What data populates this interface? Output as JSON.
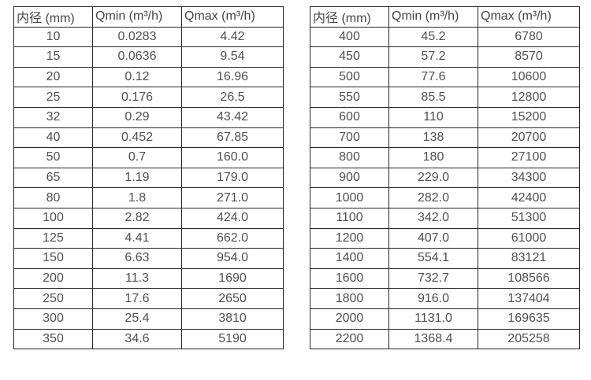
{
  "colors": {
    "border": "#262626",
    "text": "#4f4f4f",
    "background": "#ffffff"
  },
  "left_table": {
    "headers": [
      "内径 (mm)",
      "Qmin (m³/h)",
      "Qmax (m³/h)"
    ],
    "rows": [
      [
        "10",
        "0.0283",
        "4.42"
      ],
      [
        "15",
        "0.0636",
        "9.54"
      ],
      [
        "20",
        "0.12",
        "16.96"
      ],
      [
        "25",
        "0.176",
        "26.5"
      ],
      [
        "32",
        "0.29",
        "43.42"
      ],
      [
        "40",
        "0.452",
        "67.85"
      ],
      [
        "50",
        "0.7",
        "160.0"
      ],
      [
        "65",
        "1.19",
        "179.0"
      ],
      [
        "80",
        "1.8",
        "271.0"
      ],
      [
        "100",
        "2.82",
        "424.0"
      ],
      [
        "125",
        "4.41",
        "662.0"
      ],
      [
        "150",
        "6.63",
        "954.0"
      ],
      [
        "200",
        "11.3",
        "1690"
      ],
      [
        "250",
        "17.6",
        "2650"
      ],
      [
        "300",
        "25.4",
        "3810"
      ],
      [
        "350",
        "34.6",
        "5190"
      ]
    ]
  },
  "right_table": {
    "headers": [
      "内径 (mm)",
      "Qmin (m³/h)",
      "Qmax (m³/h)"
    ],
    "rows": [
      [
        "400",
        "45.2",
        "6780"
      ],
      [
        "450",
        "57.2",
        "8570"
      ],
      [
        "500",
        "77.6",
        "10600"
      ],
      [
        "550",
        "85.5",
        "12800"
      ],
      [
        "600",
        "110",
        "15200"
      ],
      [
        "700",
        "138",
        "20700"
      ],
      [
        "800",
        "180",
        "27100"
      ],
      [
        "900",
        "229.0",
        "34300"
      ],
      [
        "1000",
        "282.0",
        "42400"
      ],
      [
        "1100",
        "342.0",
        "51300"
      ],
      [
        "1200",
        "407.0",
        "61000"
      ],
      [
        "1400",
        "554.1",
        "83121"
      ],
      [
        "1600",
        "732.7",
        "108566"
      ],
      [
        "1800",
        "916.0",
        "137404"
      ],
      [
        "2000",
        "1131.0",
        "169635"
      ],
      [
        "2200",
        "1368.4",
        "205258"
      ]
    ]
  }
}
